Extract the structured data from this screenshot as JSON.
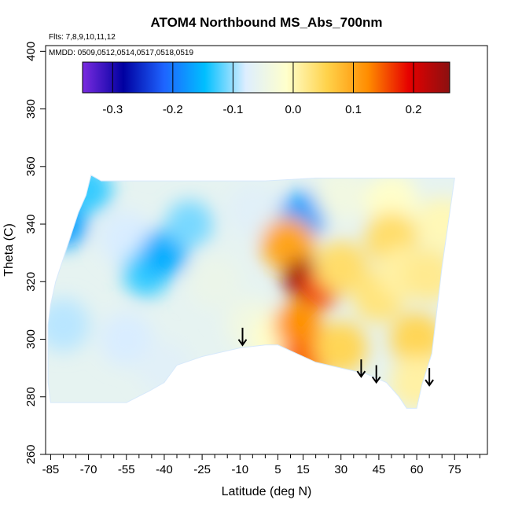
{
  "chart_data": {
    "type": "heatmap",
    "title": "ATOM4 Northbound MS_Abs_700nm",
    "subtitle_flights": "Flts: 7,8,9,10,11,12",
    "subtitle_dates": "MMDD: 0509,0512,0514,0517,0518,0519",
    "xlabel": "Latitude (deg N)",
    "ylabel": "Theta (C)",
    "xlim": [
      -87,
      88
    ],
    "ylim": [
      260,
      402
    ],
    "x_ticks": [
      -85,
      -70,
      -55,
      -40,
      -25,
      -10,
      5,
      15,
      30,
      45,
      60,
      75
    ],
    "y_ticks": [
      260,
      280,
      300,
      320,
      340,
      360,
      380,
      400
    ],
    "colorbar": {
      "min": -0.35,
      "max": 0.26,
      "ticks": [
        -0.3,
        -0.2,
        -0.1,
        0.0,
        0.1,
        0.2
      ],
      "tick_labels": [
        "-0.3",
        "-0.2",
        "-0.1",
        "0.0",
        "0.1",
        "0.2"
      ],
      "colors": [
        "#7a2be0",
        "#0000a0",
        "#1e64ff",
        "#00bfff",
        "#ddeeff",
        "#ffffcc",
        "#ffd24a",
        "#ff8c00",
        "#e60000",
        "#8b1010"
      ]
    },
    "field_samples": [
      {
        "lat": -80,
        "theta": 340,
        "value": -0.17
      },
      {
        "lat": -70,
        "theta": 352,
        "value": -0.13
      },
      {
        "lat": -55,
        "theta": 335,
        "value": -0.08
      },
      {
        "lat": -47,
        "theta": 323,
        "value": -0.13
      },
      {
        "lat": -40,
        "theta": 330,
        "value": -0.16
      },
      {
        "lat": -30,
        "theta": 340,
        "value": -0.11
      },
      {
        "lat": -80,
        "theta": 305,
        "value": -0.09
      },
      {
        "lat": -55,
        "theta": 300,
        "value": -0.08
      },
      {
        "lat": -40,
        "theta": 290,
        "value": -0.07
      },
      {
        "lat": -20,
        "theta": 320,
        "value": -0.05
      },
      {
        "lat": -5,
        "theta": 345,
        "value": -0.07
      },
      {
        "lat": 15,
        "theta": 343,
        "value": -0.17
      },
      {
        "lat": 30,
        "theta": 350,
        "value": -0.04
      },
      {
        "lat": 50,
        "theta": 348,
        "value": -0.01
      },
      {
        "lat": -5,
        "theta": 305,
        "value": -0.04
      },
      {
        "lat": 5,
        "theta": 300,
        "value": -0.01
      },
      {
        "lat": 9,
        "theta": 333,
        "value": 0.1
      },
      {
        "lat": 15,
        "theta": 321,
        "value": 0.25
      },
      {
        "lat": 22,
        "theta": 318,
        "value": 0.16
      },
      {
        "lat": 13,
        "theta": 305,
        "value": 0.12
      },
      {
        "lat": 15,
        "theta": 292,
        "value": 0.14
      },
      {
        "lat": 30,
        "theta": 297,
        "value": 0.05
      },
      {
        "lat": 30,
        "theta": 325,
        "value": 0.04
      },
      {
        "lat": 45,
        "theta": 315,
        "value": 0.03
      },
      {
        "lat": 50,
        "theta": 335,
        "value": 0.04
      },
      {
        "lat": 55,
        "theta": 323,
        "value": 0.01
      },
      {
        "lat": 60,
        "theta": 300,
        "value": 0.05
      },
      {
        "lat": 65,
        "theta": 322,
        "value": 0.02
      },
      {
        "lat": 70,
        "theta": 340,
        "value": 0.0
      },
      {
        "lat": 60,
        "theta": 285,
        "value": 0.01
      }
    ],
    "data_envelope_top": [
      [
        -86,
        305
      ],
      [
        -85,
        312
      ],
      [
        -83,
        320
      ],
      [
        -80,
        328
      ],
      [
        -77,
        336
      ],
      [
        -74,
        344
      ],
      [
        -71,
        350
      ],
      [
        -69,
        357
      ],
      [
        -65,
        355
      ],
      [
        -50,
        355
      ],
      [
        -20,
        355
      ],
      [
        0,
        355
      ],
      [
        20,
        356
      ],
      [
        40,
        356
      ],
      [
        60,
        356
      ],
      [
        75,
        356
      ]
    ],
    "data_envelope_bottom": [
      [
        75,
        356
      ],
      [
        70,
        325
      ],
      [
        66,
        295
      ],
      [
        62,
        284
      ],
      [
        60,
        276
      ],
      [
        56,
        276
      ],
      [
        53,
        280
      ],
      [
        48,
        285
      ],
      [
        40,
        288
      ],
      [
        30,
        290
      ],
      [
        20,
        292
      ],
      [
        10,
        296
      ],
      [
        5,
        298
      ],
      [
        0,
        298
      ],
      [
        -10,
        297
      ],
      [
        -25,
        294
      ],
      [
        -35,
        291
      ],
      [
        -40,
        285
      ],
      [
        -46,
        282
      ],
      [
        -55,
        278
      ],
      [
        -85,
        278
      ],
      [
        -86,
        285
      ]
    ],
    "arrows": [
      {
        "lat": -9,
        "theta_top": 304,
        "theta_bottom": 298
      },
      {
        "lat": 38,
        "theta_top": 293,
        "theta_bottom": 287
      },
      {
        "lat": 44,
        "theta_top": 291,
        "theta_bottom": 285
      },
      {
        "lat": 65,
        "theta_top": 290,
        "theta_bottom": 284
      }
    ]
  }
}
